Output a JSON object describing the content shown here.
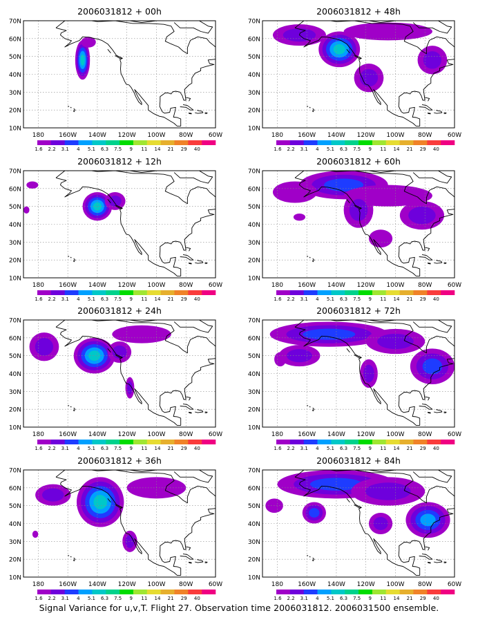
{
  "figure": {
    "caption": "Signal Variance for u,v,T. Flight 27. Observation time 2006031812. 2006031500 ensemble.",
    "lat_ticks": [
      "70N",
      "60N",
      "50N",
      "40N",
      "30N",
      "20N",
      "10N"
    ],
    "lon_ticks": [
      "180",
      "160W",
      "140W",
      "120W",
      "100W",
      "80W",
      "60W"
    ],
    "colorbar": {
      "labels": [
        "1.6",
        "2.2",
        "3.1",
        "4",
        "5.1",
        "6.3",
        "7.5",
        "9",
        "11",
        "14",
        "21",
        "29",
        "40"
      ],
      "colors": [
        "#a000c8",
        "#6e00dc",
        "#1e3cff",
        "#00a0ff",
        "#00c8c8",
        "#00d28c",
        "#00dc00",
        "#a0e632",
        "#e6dc32",
        "#e6af2d",
        "#f08228",
        "#fa3c3c",
        "#f00082"
      ]
    },
    "panels": [
      {
        "title": "2006031812 + 00h"
      },
      {
        "title": "2006031812 + 48h"
      },
      {
        "title": "2006031812 + 12h"
      },
      {
        "title": "2006031812 + 60h"
      },
      {
        "title": "2006031812 + 24h"
      },
      {
        "title": "2006031812 + 72h"
      },
      {
        "title": "2006031812 + 36h"
      },
      {
        "title": "2006031812 + 84h"
      }
    ]
  }
}
